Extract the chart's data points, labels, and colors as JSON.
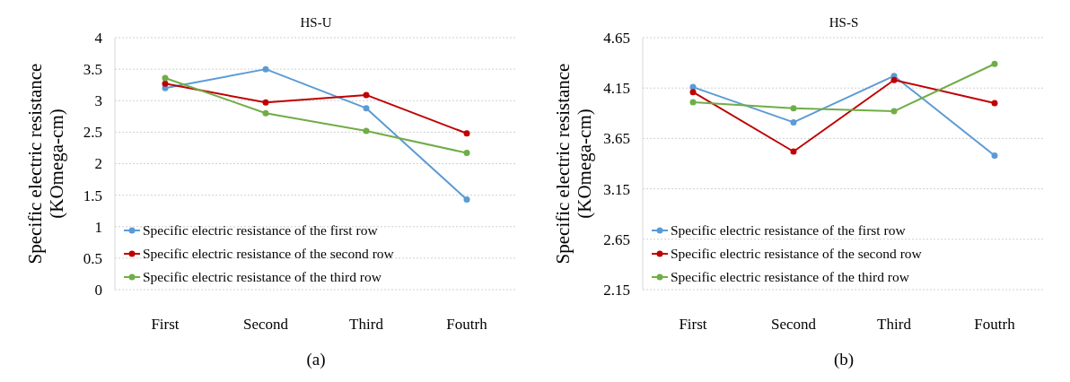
{
  "chart_data": [
    {
      "type": "line",
      "title": "HS-U",
      "ylabel": "Specific electric resistance (KOmega-cm)",
      "categories": [
        "First",
        "Second",
        "Third",
        "Foutrh"
      ],
      "ylim": [
        0,
        4
      ],
      "yticks": [
        0,
        0.5,
        1,
        1.5,
        2,
        2.5,
        3,
        3.5,
        4
      ],
      "grid": "y",
      "legend": "bottom left",
      "marker": "circle",
      "line_style": "solid",
      "annotations": [
        "(a)"
      ],
      "series": [
        {
          "name": "Specific electric resistance of the first row",
          "color": "#5b9bd5",
          "values": [
            3.2,
            3.5,
            2.88,
            1.43
          ]
        },
        {
          "name": "Specific electric resistance of the second row",
          "color": "#c00000",
          "values": [
            3.27,
            2.97,
            3.09,
            2.48
          ]
        },
        {
          "name": "Specific electric resistance of the third row",
          "color": "#70ad47",
          "values": [
            3.36,
            2.8,
            2.52,
            2.17
          ]
        }
      ]
    },
    {
      "type": "line",
      "title": "HS-S",
      "ylabel": "Specific electric resistance (KOmega-cm)",
      "categories": [
        "First",
        "Second",
        "Third",
        "Foutrh"
      ],
      "ylim": [
        2.15,
        4.65
      ],
      "yticks": [
        2.15,
        2.65,
        3.15,
        3.65,
        4.15,
        4.65
      ],
      "grid": "y",
      "legend": "bottom left",
      "marker": "circle",
      "line_style": "solid",
      "annotations": [
        "(b)"
      ],
      "series": [
        {
          "name": "Specific electric resistance of the first row",
          "color": "#5b9bd5",
          "values": [
            4.16,
            3.81,
            4.27,
            3.48
          ]
        },
        {
          "name": "Specific electric resistance of the second row",
          "color": "#c00000",
          "values": [
            4.11,
            3.52,
            4.23,
            4.0
          ]
        },
        {
          "name": "Specific electric resistance of the third row",
          "color": "#70ad47",
          "values": [
            4.01,
            3.95,
            3.92,
            4.39
          ]
        }
      ]
    }
  ]
}
